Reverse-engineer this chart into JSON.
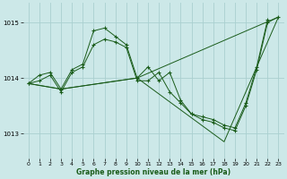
{
  "xlabel": "Graphe pression niveau de la mer (hPa)",
  "ylabel": "",
  "background_color": "#cce8e8",
  "grid_color": "#aad0d0",
  "line_color": "#1a5c1a",
  "marker_color": "#1a5c1a",
  "xlim": [
    -0.5,
    23.5
  ],
  "ylim": [
    1012.55,
    1015.35
  ],
  "yticks": [
    1013,
    1014,
    1015
  ],
  "xticks": [
    0,
    1,
    2,
    3,
    4,
    5,
    6,
    7,
    8,
    9,
    10,
    11,
    12,
    13,
    14,
    15,
    16,
    17,
    18,
    19,
    20,
    21,
    22,
    23
  ],
  "series": [
    {
      "x": [
        0,
        1,
        2,
        3,
        4,
        5,
        6,
        7,
        8,
        9,
        10,
        11,
        12,
        13,
        14,
        15,
        16,
        17,
        18,
        19,
        20,
        21,
        22
      ],
      "y": [
        1013.9,
        1014.05,
        1014.1,
        1013.8,
        1014.15,
        1014.25,
        1014.85,
        1014.9,
        1014.75,
        1014.6,
        1014.0,
        1014.2,
        1013.95,
        1014.1,
        1013.6,
        1013.35,
        1013.3,
        1013.25,
        1013.15,
        1013.1,
        1013.55,
        1014.2,
        1015.05
      ]
    },
    {
      "x": [
        0,
        1,
        2,
        3,
        4,
        5,
        6,
        7,
        8,
        9,
        10,
        11,
        12,
        13,
        14,
        15,
        16,
        17,
        18,
        19,
        20,
        21,
        22,
        23
      ],
      "y": [
        1013.9,
        1013.95,
        1014.05,
        1013.75,
        1014.1,
        1014.2,
        1014.6,
        1014.7,
        1014.65,
        1014.55,
        1013.95,
        1013.95,
        1014.1,
        1013.75,
        1013.55,
        1013.35,
        1013.25,
        1013.2,
        1013.1,
        1013.05,
        1013.5,
        1014.15,
        1015.0,
        1015.1
      ]
    },
    {
      "x": [
        0,
        3,
        10,
        23
      ],
      "y": [
        1013.9,
        1013.8,
        1014.0,
        1015.1
      ]
    },
    {
      "x": [
        0,
        3,
        10,
        18,
        23
      ],
      "y": [
        1013.9,
        1013.8,
        1014.0,
        1012.85,
        1015.1
      ]
    }
  ]
}
